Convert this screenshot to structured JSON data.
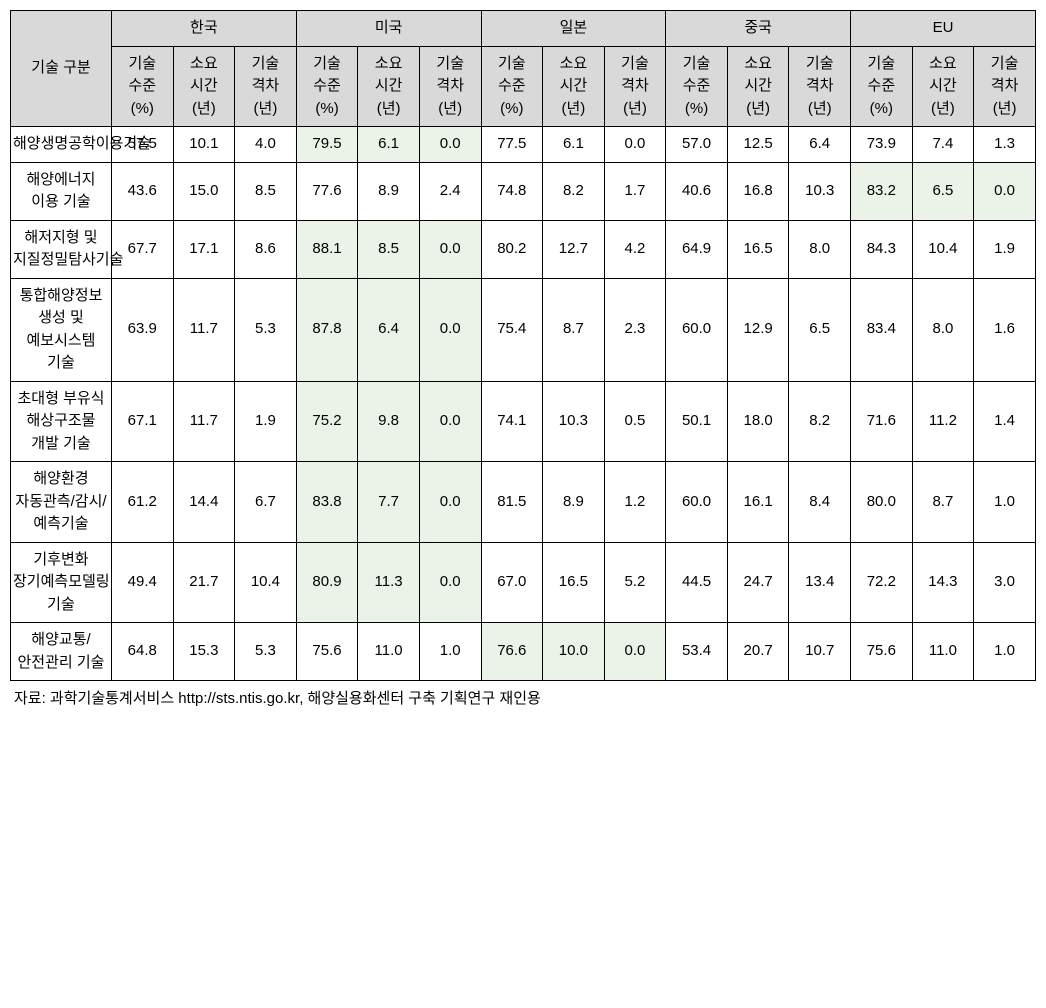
{
  "header": {
    "row_label": "기술 구분",
    "groups": [
      "한국",
      "미국",
      "일본",
      "중국",
      "EU"
    ],
    "sub_columns": [
      {
        "l1": "기술",
        "l2": "수준",
        "l3": "(%)"
      },
      {
        "l1": "소요",
        "l2": "시간",
        "l3": "(년)"
      },
      {
        "l1": "기술",
        "l2": "격차",
        "l3": "(년)"
      }
    ]
  },
  "colors": {
    "header_bg": "#d9d9d9",
    "highlight_bg": "#ebf2e7",
    "border": "#000000",
    "text": "#000000"
  },
  "rows": [
    {
      "label": "해양생명공학이용기술",
      "values": [
        "57.5",
        "10.1",
        "4.0",
        "79.5",
        "6.1",
        "0.0",
        "77.5",
        "6.1",
        "0.0",
        "57.0",
        "12.5",
        "6.4",
        "73.9",
        "7.4",
        "1.3"
      ],
      "highlight": [
        false,
        false,
        false,
        true,
        true,
        true,
        false,
        false,
        false,
        false,
        false,
        false,
        false,
        false,
        false
      ]
    },
    {
      "label": "해양에너지 이용 기술",
      "values": [
        "43.6",
        "15.0",
        "8.5",
        "77.6",
        "8.9",
        "2.4",
        "74.8",
        "8.2",
        "1.7",
        "40.6",
        "16.8",
        "10.3",
        "83.2",
        "6.5",
        "0.0"
      ],
      "highlight": [
        false,
        false,
        false,
        false,
        false,
        false,
        false,
        false,
        false,
        false,
        false,
        false,
        true,
        true,
        true
      ]
    },
    {
      "label": "해저지형 및 지질정밀탐사기술",
      "values": [
        "67.7",
        "17.1",
        "8.6",
        "88.1",
        "8.5",
        "0.0",
        "80.2",
        "12.7",
        "4.2",
        "64.9",
        "16.5",
        "8.0",
        "84.3",
        "10.4",
        "1.9"
      ],
      "highlight": [
        false,
        false,
        false,
        true,
        true,
        true,
        false,
        false,
        false,
        false,
        false,
        false,
        false,
        false,
        false
      ]
    },
    {
      "label": "통합해양정보 생성 및 예보시스템 기술",
      "values": [
        "63.9",
        "11.7",
        "5.3",
        "87.8",
        "6.4",
        "0.0",
        "75.4",
        "8.7",
        "2.3",
        "60.0",
        "12.9",
        "6.5",
        "83.4",
        "8.0",
        "1.6"
      ],
      "highlight": [
        false,
        false,
        false,
        true,
        true,
        true,
        false,
        false,
        false,
        false,
        false,
        false,
        false,
        false,
        false
      ]
    },
    {
      "label": "초대형 부유식 해상구조물 개발 기술",
      "values": [
        "67.1",
        "11.7",
        "1.9",
        "75.2",
        "9.8",
        "0.0",
        "74.1",
        "10.3",
        "0.5",
        "50.1",
        "18.0",
        "8.2",
        "71.6",
        "11.2",
        "1.4"
      ],
      "highlight": [
        false,
        false,
        false,
        true,
        true,
        true,
        false,
        false,
        false,
        false,
        false,
        false,
        false,
        false,
        false
      ]
    },
    {
      "label": "해양환경 자동관측/감시/예측기술",
      "values": [
        "61.2",
        "14.4",
        "6.7",
        "83.8",
        "7.7",
        "0.0",
        "81.5",
        "8.9",
        "1.2",
        "60.0",
        "16.1",
        "8.4",
        "80.0",
        "8.7",
        "1.0"
      ],
      "highlight": [
        false,
        false,
        false,
        true,
        true,
        true,
        false,
        false,
        false,
        false,
        false,
        false,
        false,
        false,
        false
      ]
    },
    {
      "label": "기후변화 장기예측모델링 기술",
      "values": [
        "49.4",
        "21.7",
        "10.4",
        "80.9",
        "11.3",
        "0.0",
        "67.0",
        "16.5",
        "5.2",
        "44.5",
        "24.7",
        "13.4",
        "72.2",
        "14.3",
        "3.0"
      ],
      "highlight": [
        false,
        false,
        false,
        true,
        true,
        true,
        false,
        false,
        false,
        false,
        false,
        false,
        false,
        false,
        false
      ]
    },
    {
      "label": "해양교통/안전관리 기술",
      "values": [
        "64.8",
        "15.3",
        "5.3",
        "75.6",
        "11.0",
        "1.0",
        "76.6",
        "10.0",
        "0.0",
        "53.4",
        "20.7",
        "10.7",
        "75.6",
        "11.0",
        "1.0"
      ],
      "highlight": [
        false,
        false,
        false,
        false,
        false,
        false,
        true,
        true,
        true,
        false,
        false,
        false,
        false,
        false,
        false
      ]
    }
  ],
  "source": "자료: 과학기술통계서비스 http://sts.ntis.go.kr, 해양실용화센터 구축 기획연구 재인용"
}
